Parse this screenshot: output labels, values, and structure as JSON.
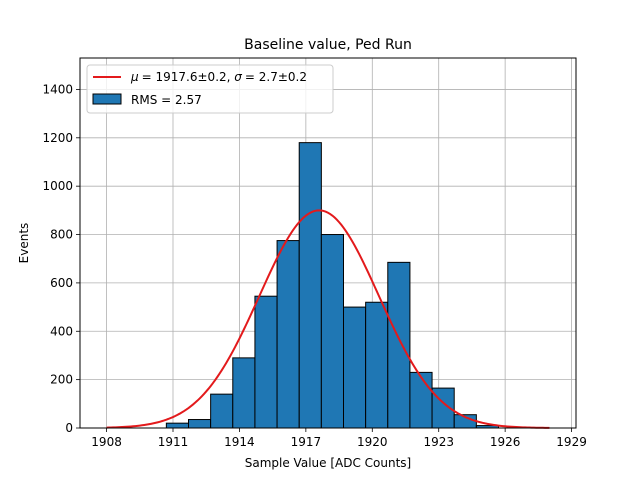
{
  "chart_data": {
    "type": "bar",
    "title": "Baseline value, Ped Run",
    "xlabel": "Sample Value [ADC Counts]",
    "ylabel": "Events",
    "xlim": [
      1906.8,
      1929.2
    ],
    "ylim": [
      0,
      1530
    ],
    "xticks": [
      1908,
      1911,
      1914,
      1917,
      1920,
      1923,
      1926,
      1929
    ],
    "yticks": [
      0,
      200,
      400,
      600,
      800,
      1000,
      1200,
      1400
    ],
    "grid": true,
    "legend_position": "top-left",
    "histogram": {
      "name": "RMS = 2.57",
      "color": "#1f77b4",
      "edgecolor": "#000000",
      "bins": [
        {
          "x0": 1910.7,
          "x1": 1911.7,
          "count": 20
        },
        {
          "x0": 1911.7,
          "x1": 1912.7,
          "count": 35
        },
        {
          "x0": 1912.7,
          "x1": 1913.7,
          "count": 140
        },
        {
          "x0": 1913.7,
          "x1": 1914.7,
          "count": 290
        },
        {
          "x0": 1914.7,
          "x1": 1915.7,
          "count": 545
        },
        {
          "x0": 1915.7,
          "x1": 1916.7,
          "count": 775
        },
        {
          "x0": 1916.7,
          "x1": 1917.7,
          "count": 1180
        },
        {
          "x0": 1917.7,
          "x1": 1918.7,
          "count": 800
        },
        {
          "x0": 1918.7,
          "x1": 1919.7,
          "count": 500
        },
        {
          "x0": 1919.7,
          "x1": 1920.7,
          "count": 520
        },
        {
          "x0": 1920.7,
          "x1": 1921.7,
          "count": 685
        },
        {
          "x0": 1921.7,
          "x1": 1922.7,
          "count": 230
        },
        {
          "x0": 1922.7,
          "x1": 1923.7,
          "count": 165
        },
        {
          "x0": 1923.7,
          "x1": 1924.7,
          "count": 55
        },
        {
          "x0": 1924.7,
          "x1": 1925.7,
          "count": 10
        }
      ]
    },
    "fit": {
      "name": "μ = 1917.6±0.2, σ = 2.7±0.2",
      "label_parts": {
        "mu_symbol": "μ",
        "mu_value": "= 1917.6±0.2, ",
        "sigma_symbol": "σ",
        "sigma_value": "= 2.7±0.2"
      },
      "type": "gaussian",
      "mu": 1917.6,
      "sigma": 2.7,
      "amplitude": 900,
      "x_range": [
        1908,
        1928
      ],
      "color": "#e31a1c"
    }
  }
}
